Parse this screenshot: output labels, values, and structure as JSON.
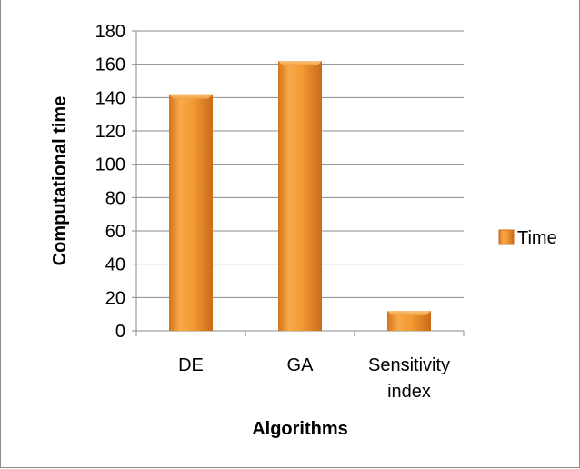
{
  "chart_data": {
    "type": "bar",
    "categories": [
      "DE",
      "GA",
      "Sensitivity index"
    ],
    "category_lines": [
      [
        "DE"
      ],
      [
        "GA"
      ],
      [
        "Sensitivity",
        "index"
      ]
    ],
    "series": [
      {
        "name": "Time",
        "values": [
          142,
          162,
          12
        ],
        "color": "#f39a2e"
      }
    ],
    "xlabel": "Algorithms",
    "ylabel": "Computational time",
    "ylim": [
      0,
      180
    ],
    "yticks": [
      0,
      20,
      40,
      60,
      80,
      100,
      120,
      140,
      160,
      180
    ],
    "grid": true,
    "legend_position": "right"
  }
}
